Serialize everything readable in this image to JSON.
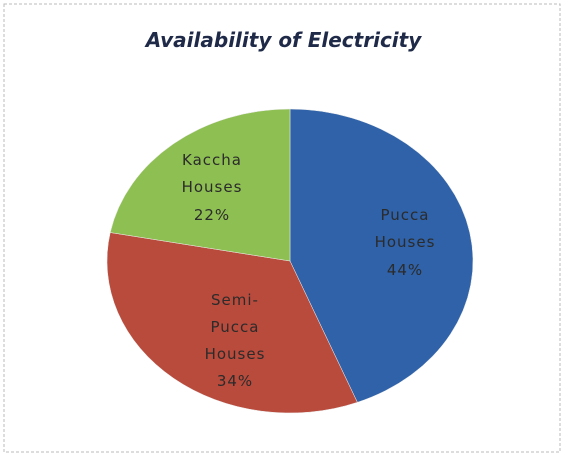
{
  "chart_data": {
    "type": "pie",
    "title": "Availability of Electricity",
    "categories": [
      "Pucca Houses",
      "Semi-Pucca Houses",
      "Kaccha Houses"
    ],
    "values": [
      44,
      34,
      22
    ],
    "value_labels": [
      "44%",
      "34%",
      "22%"
    ],
    "colors": [
      "#2f62a8",
      "#b94b3d",
      "#8ebf52"
    ]
  }
}
